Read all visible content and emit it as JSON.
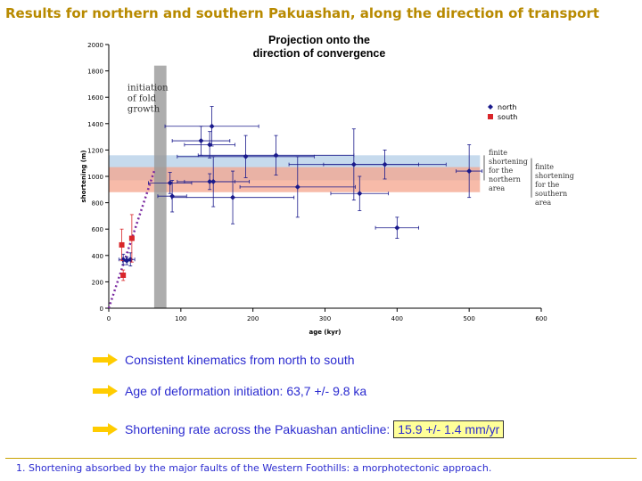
{
  "slide_title": "Results for northern and southern Pakuashan, along the direction of transport",
  "bullets": [
    {
      "text": "Consistent kinematics from north to south",
      "highlight": ""
    },
    {
      "text": "Age of deformation initiation: 63,7 +/- 9.8 ka",
      "highlight": ""
    },
    {
      "text": "Shortening rate across the Pakuashan anticline:",
      "highlight": "15.9 +/- 1.4 mm/yr"
    }
  ],
  "footer": "1. Shortening absorbed by the major faults of the Western Foothills: a morphotectonic approach.",
  "colors": {
    "north": "#1a1a8c",
    "south": "#d9262a",
    "band_north": "#bcd4ea",
    "band_south": "#f4a48c",
    "overlap": "#d8b0a8",
    "bar": "#999999",
    "trend": "#7a2aa0",
    "arrow": "#ffcc00"
  },
  "chart_data": {
    "type": "scatter",
    "title": "Projection onto the direction of convergence",
    "xlabel": "age (kyr)",
    "ylabel": "shortening (m)",
    "xlim": [
      0,
      600
    ],
    "ylim": [
      0,
      2000
    ],
    "xticks": [
      0,
      100,
      200,
      300,
      400,
      500,
      600
    ],
    "yticks": [
      0,
      200,
      400,
      600,
      800,
      1000,
      1200,
      1400,
      1600,
      1800,
      2000
    ],
    "grid": false,
    "legend_position": "right",
    "series": [
      {
        "name": "north",
        "color": "#1a1a8c",
        "points": [
          {
            "x": 20,
            "y": 370,
            "xe": 6,
            "ye": 40
          },
          {
            "x": 25,
            "y": 360,
            "xe": 6,
            "ye": 30
          },
          {
            "x": 30,
            "y": 370,
            "xe": 6,
            "ye": 50
          },
          {
            "x": 85,
            "y": 950,
            "xe": 30,
            "ye": 80
          },
          {
            "x": 88,
            "y": 850,
            "xe": 20,
            "ye": 120
          },
          {
            "x": 128,
            "y": 1270,
            "xe": 40,
            "ye": 110
          },
          {
            "x": 140,
            "y": 1240,
            "xe": 35,
            "ye": 100
          },
          {
            "x": 140,
            "y": 960,
            "xe": 35,
            "ye": 60
          },
          {
            "x": 143,
            "y": 1380,
            "xe": 65,
            "ye": 150
          },
          {
            "x": 145,
            "y": 960,
            "xe": 50,
            "ye": 190
          },
          {
            "x": 172,
            "y": 840,
            "xe": 85,
            "ye": 200
          },
          {
            "x": 190,
            "y": 1150,
            "xe": 95,
            "ye": 160
          },
          {
            "x": 232,
            "y": 1160,
            "xe": 108,
            "ye": 150
          },
          {
            "x": 262,
            "y": 920,
            "xe": 80,
            "ye": 230
          },
          {
            "x": 340,
            "y": 1090,
            "xe": 90,
            "ye": 270
          },
          {
            "x": 348,
            "y": 870,
            "xe": 40,
            "ye": 130
          },
          {
            "x": 383,
            "y": 1090,
            "xe": 85,
            "ye": 110
          },
          {
            "x": 400,
            "y": 610,
            "xe": 30,
            "ye": 80
          },
          {
            "x": 500,
            "y": 1040,
            "xe": 18,
            "ye": 200
          }
        ]
      },
      {
        "name": "south",
        "color": "#d9262a",
        "points": [
          {
            "x": 18,
            "y": 480,
            "xe": 3,
            "ye": 120
          },
          {
            "x": 20,
            "y": 250,
            "xe": 3,
            "ye": 40
          },
          {
            "x": 32,
            "y": 530,
            "xe": 3,
            "ye": 180
          }
        ]
      }
    ],
    "bands": [
      {
        "label": "finite shortening for the northern area",
        "y_from": 970,
        "y_to": 1160
      },
      {
        "label": "finite shortening for the southern area",
        "y_from": 880,
        "y_to": 1070
      }
    ],
    "vertical_band": {
      "label": "initiation of fold growth",
      "x_from": 63,
      "x_to": 80
    },
    "trend_line": {
      "points": [
        [
          0,
          0
        ],
        [
          63,
          1040
        ]
      ]
    }
  }
}
